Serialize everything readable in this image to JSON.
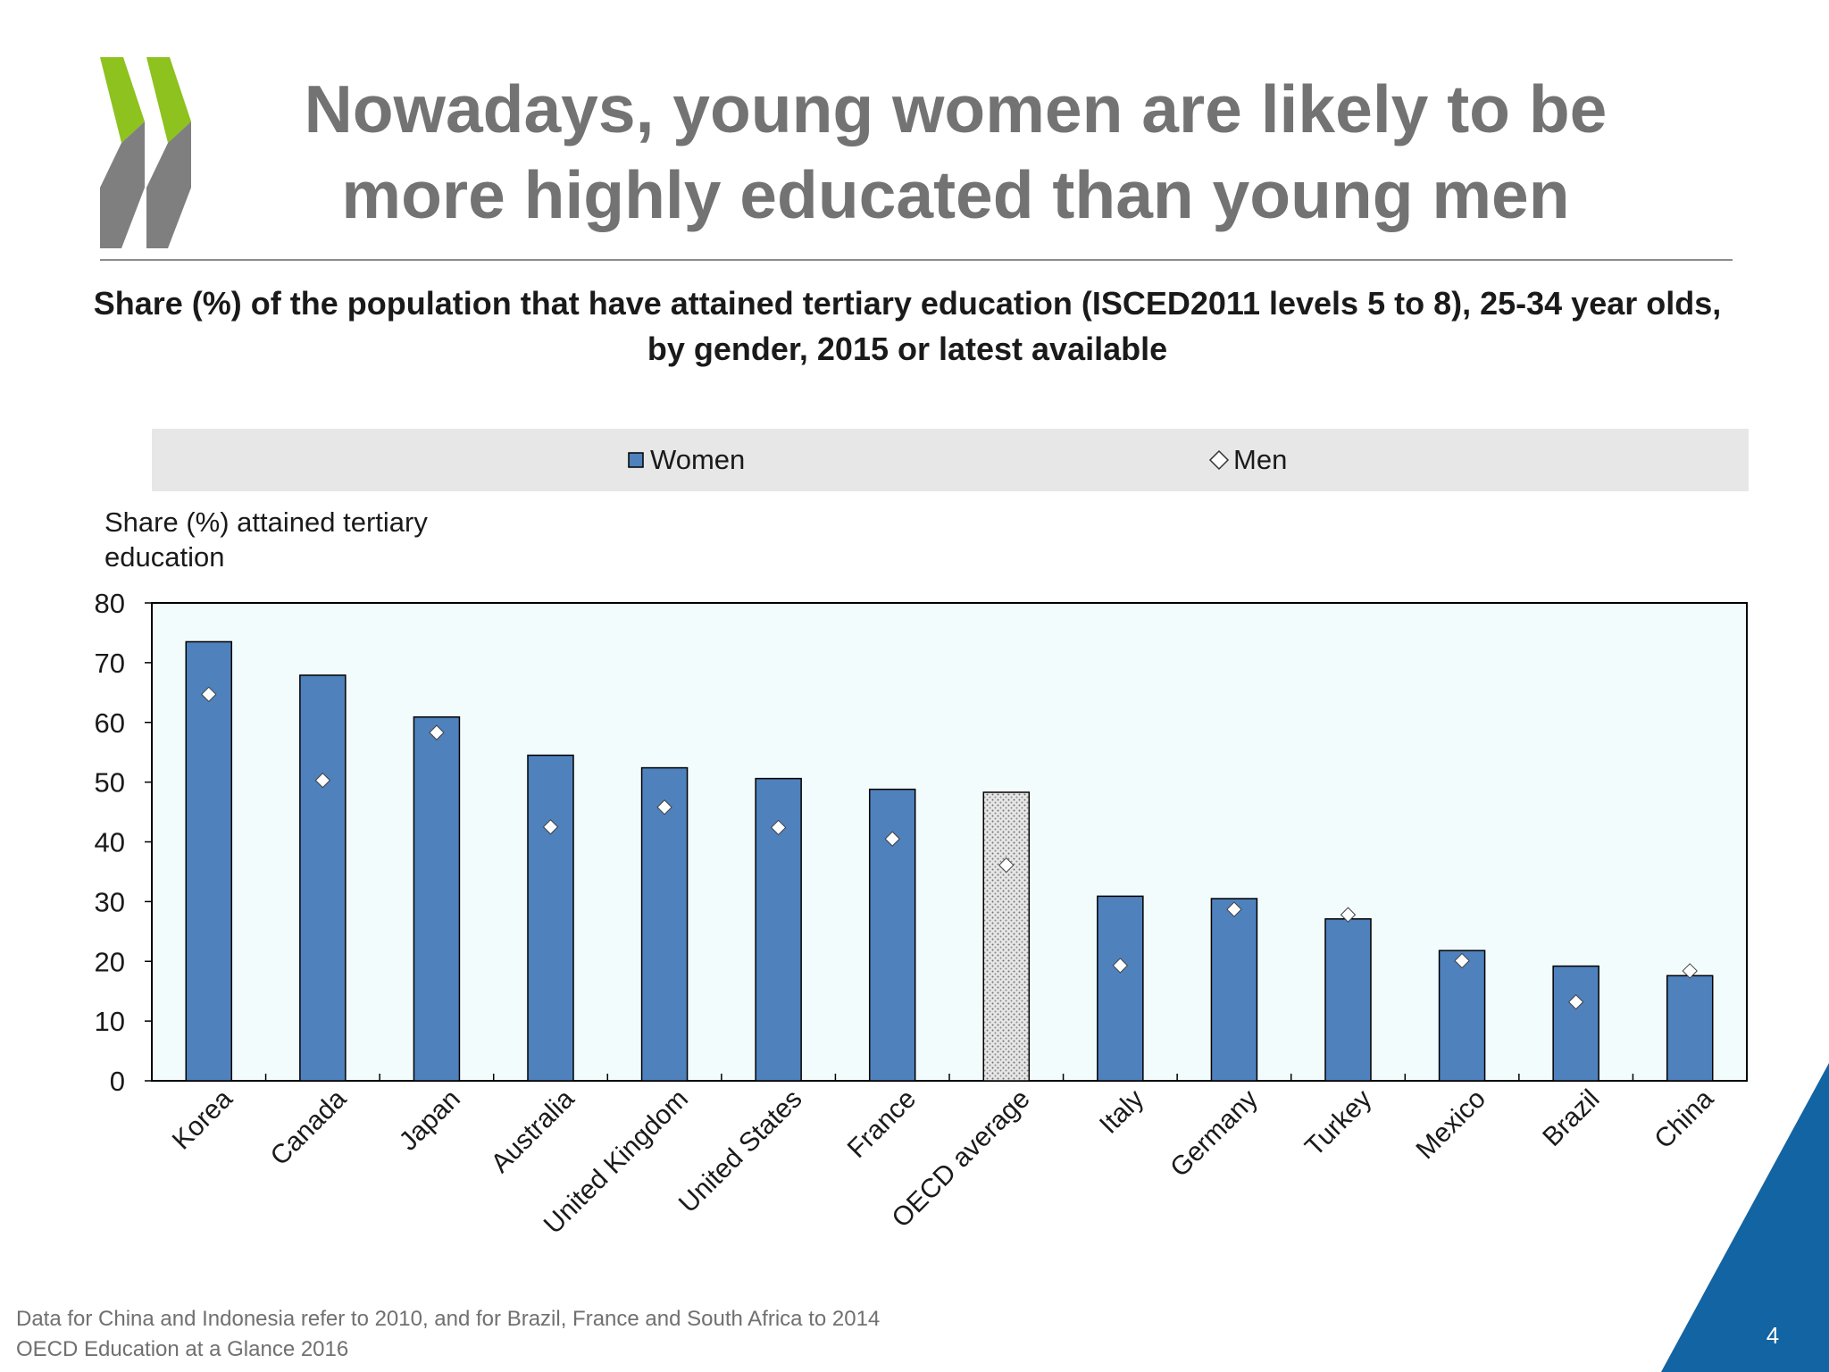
{
  "slide": {
    "title_line1": "Nowadays, young women are likely to be",
    "title_line2": "more highly educated than young men",
    "page_number": "4"
  },
  "colors": {
    "women_bar": "#4f81bd",
    "oecd_bar": "#d9d9d9",
    "plot_bg": "#f2fcfd",
    "legend_bg": "#e7e7e8",
    "logo_green": "#8dc21f",
    "logo_grey": "#7f7f7f",
    "corner_blue": "#1264a3"
  },
  "icons": {
    "logo": "oecd-double-chevron-logo",
    "men_marker": "diamond-marker",
    "women_marker": "square-marker"
  },
  "footer": {
    "note": "Data for China and Indonesia refer to 2010, and for Brazil, France and South Africa to 2014",
    "source": "OECD Education at a Glance 2016"
  },
  "chart_data": {
    "type": "bar",
    "title": "Share (%) of the population that have attained tertiary education (ISCED2011 levels 5 to 8), 25-34 year olds,",
    "subtitle": "by gender, 2015 or latest available",
    "ylabel_line1": "Share (%) attained tertiary",
    "ylabel_line2": "education",
    "xlabel": "",
    "ylim": [
      0,
      80
    ],
    "yticks": [
      0,
      10,
      20,
      30,
      40,
      50,
      60,
      70,
      80
    ],
    "legend_position": "top",
    "grid": false,
    "categories": [
      "Korea",
      "Canada",
      "Japan",
      "Australia",
      "United Kingdom",
      "United States",
      "France",
      "OECD average",
      "Italy",
      "Germany",
      "Turkey",
      "Mexico",
      "Brazil",
      "China"
    ],
    "highlight_category": "OECD average",
    "series": [
      {
        "name": "Women",
        "type": "bar",
        "values": [
          73.5,
          67.9,
          60.9,
          54.5,
          52.4,
          50.6,
          48.8,
          48.3,
          30.9,
          30.5,
          27.1,
          21.8,
          19.2,
          17.6
        ]
      },
      {
        "name": "Men",
        "type": "marker",
        "values": [
          64.7,
          50.3,
          58.3,
          42.5,
          45.8,
          42.4,
          40.5,
          36.1,
          19.3,
          28.7,
          27.8,
          20.1,
          13.2,
          18.4
        ]
      }
    ]
  }
}
